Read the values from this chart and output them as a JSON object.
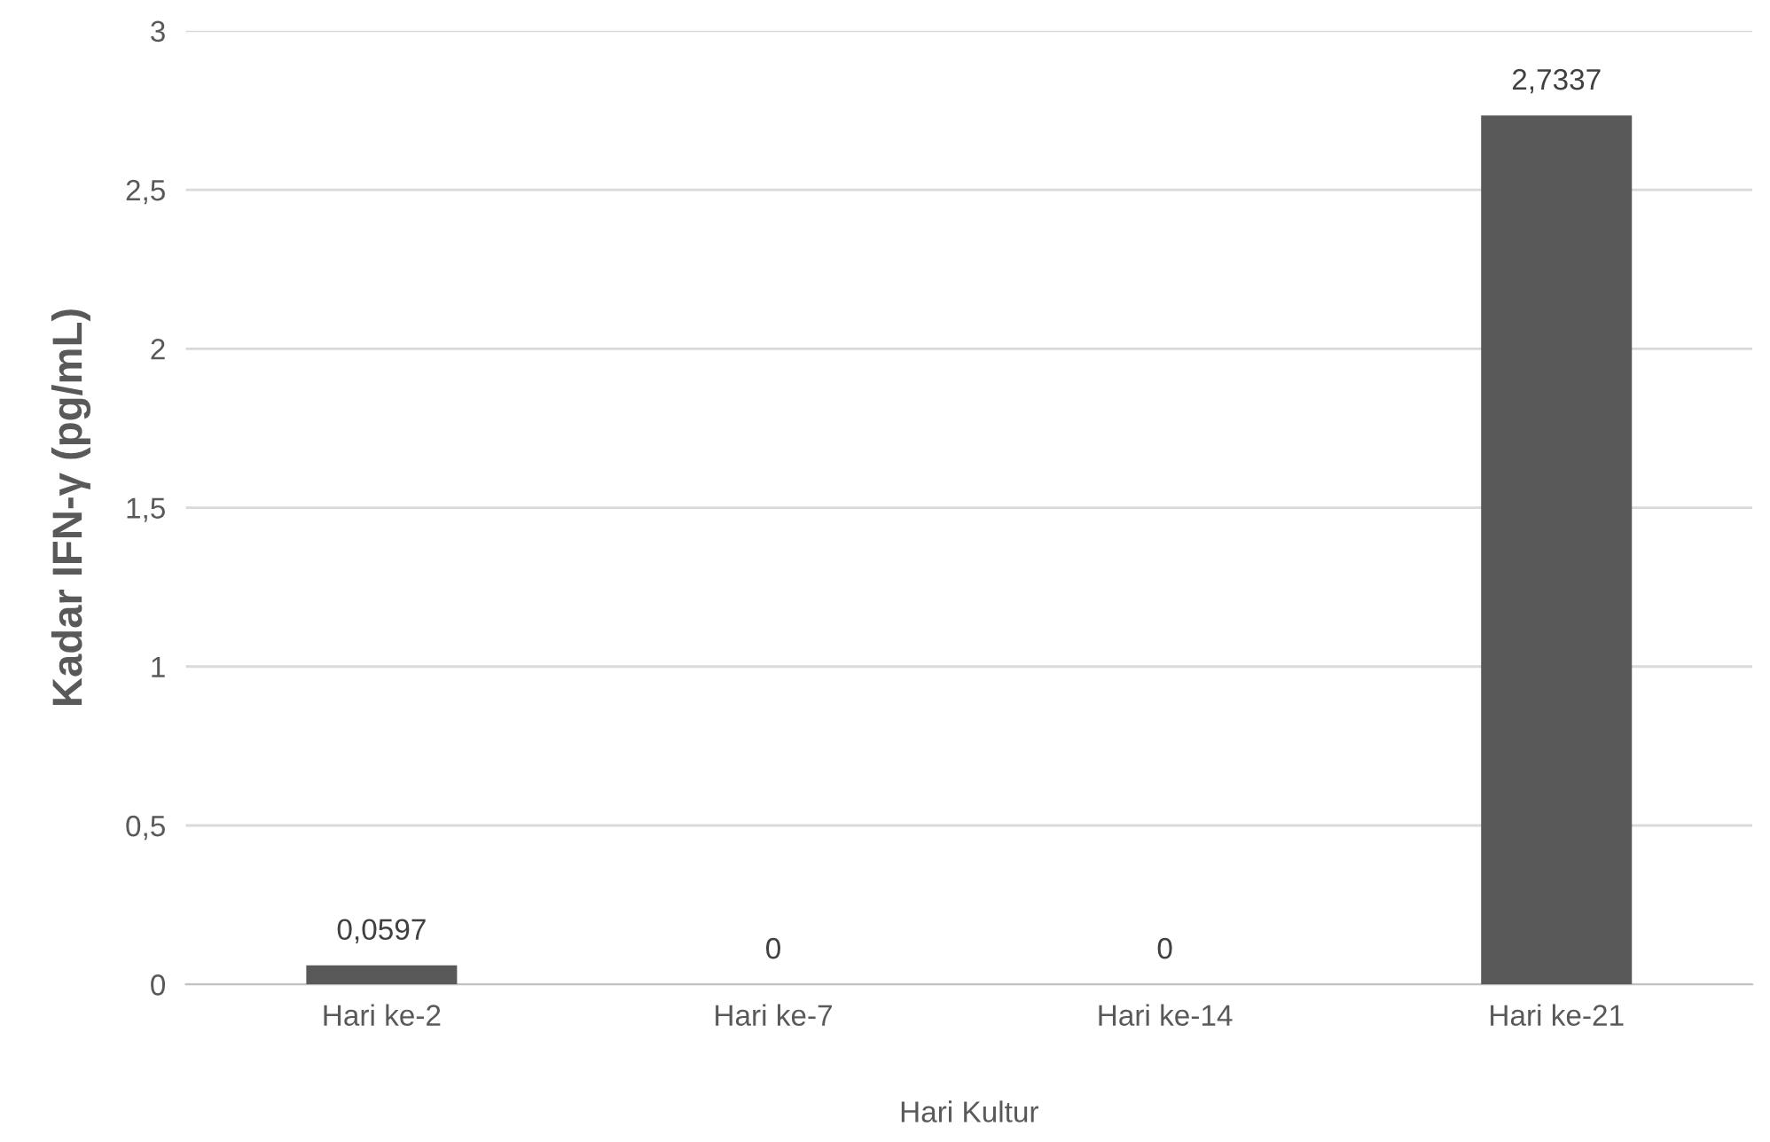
{
  "chart_data": {
    "type": "bar",
    "xlabel": "Hari Kultur",
    "ylabel": "Kadar IFN-γ (pg/mL)",
    "categories": [
      "Hari ke-2",
      "Hari ke-7",
      "Hari ke-14",
      "Hari ke-21"
    ],
    "values": [
      0.0597,
      0,
      0,
      2.7337
    ],
    "value_labels": [
      "0,0597",
      "0",
      "0",
      "2,7337"
    ],
    "color": "#595959",
    "ylim": [
      0,
      3
    ],
    "yticks": [
      0,
      {
        "value": 0.5,
        "label": "0,5"
      },
      1,
      {
        "value": 1.5,
        "label": "1,5"
      },
      2,
      {
        "value": 2.5,
        "label": "2,5"
      },
      3
    ],
    "grid": "y",
    "legend": false
  }
}
